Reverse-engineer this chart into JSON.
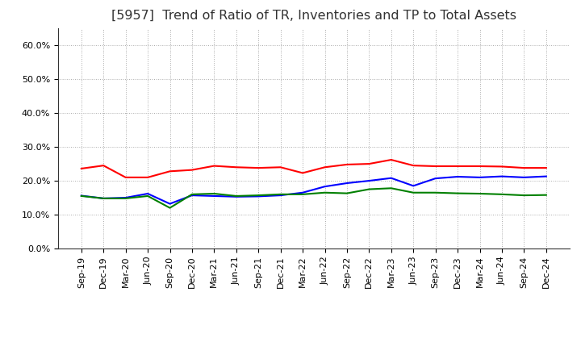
{
  "title": "[5957]  Trend of Ratio of TR, Inventories and TP to Total Assets",
  "labels": [
    "Sep-19",
    "Dec-19",
    "Mar-20",
    "Jun-20",
    "Sep-20",
    "Dec-20",
    "Mar-21",
    "Jun-21",
    "Sep-21",
    "Dec-21",
    "Mar-22",
    "Jun-22",
    "Sep-22",
    "Dec-22",
    "Mar-23",
    "Jun-23",
    "Sep-23",
    "Dec-23",
    "Mar-24",
    "Jun-24",
    "Sep-24",
    "Dec-24"
  ],
  "trade_receivables": [
    0.236,
    0.245,
    0.21,
    0.21,
    0.228,
    0.232,
    0.244,
    0.24,
    0.238,
    0.24,
    0.223,
    0.24,
    0.248,
    0.25,
    0.262,
    0.245,
    0.243,
    0.243,
    0.243,
    0.242,
    0.238,
    0.238
  ],
  "inventories": [
    0.156,
    0.148,
    0.15,
    0.162,
    0.132,
    0.157,
    0.155,
    0.153,
    0.154,
    0.157,
    0.165,
    0.183,
    0.193,
    0.2,
    0.208,
    0.185,
    0.207,
    0.212,
    0.21,
    0.213,
    0.21,
    0.213
  ],
  "trade_payables": [
    0.155,
    0.148,
    0.148,
    0.155,
    0.12,
    0.16,
    0.162,
    0.155,
    0.157,
    0.16,
    0.16,
    0.165,
    0.163,
    0.175,
    0.178,
    0.165,
    0.165,
    0.163,
    0.162,
    0.16,
    0.157,
    0.158
  ],
  "tr_color": "#ff0000",
  "inv_color": "#0000ff",
  "tp_color": "#008000",
  "ylim": [
    0.0,
    0.65
  ],
  "yticks": [
    0.0,
    0.1,
    0.2,
    0.3,
    0.4,
    0.5,
    0.6
  ],
  "background_color": "#ffffff",
  "grid_color": "#aaaaaa",
  "title_fontsize": 11.5,
  "tick_fontsize": 8,
  "legend_fontsize": 9
}
